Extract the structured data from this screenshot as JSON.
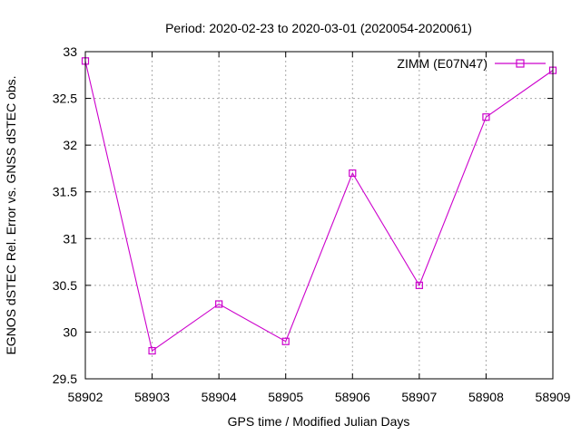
{
  "chart_data": {
    "type": "line",
    "title": "Period: 2020-02-23 to 2020-03-01 (2020054-2020061)",
    "xlabel": "GPS time / Modified Julian Days",
    "ylabel": "EGNOS dSTEC Rel. Error vs. GNSS dSTEC obs.",
    "x": [
      58902,
      58903,
      58904,
      58905,
      58906,
      58907,
      58908,
      58909
    ],
    "series": [
      {
        "name": "ZIMM (E07N47)",
        "values": [
          32.9,
          29.8,
          30.3,
          29.9,
          31.7,
          30.5,
          32.3,
          32.8
        ]
      }
    ],
    "xlim": [
      58902,
      58909
    ],
    "ylim": [
      29.5,
      33
    ],
    "xticks": [
      58902,
      58903,
      58904,
      58905,
      58906,
      58907,
      58908,
      58909
    ],
    "yticks": [
      29.5,
      30,
      30.5,
      31,
      31.5,
      32,
      32.5,
      33
    ],
    "grid": true,
    "grid_style": "dashed",
    "legend_position": "top-right",
    "marker": "open-square",
    "colors": {
      "series": "#CC00CC",
      "grid": "#A8A8A8",
      "axis": "#000000",
      "background": "#FFFFFF",
      "text": "#000000"
    }
  }
}
